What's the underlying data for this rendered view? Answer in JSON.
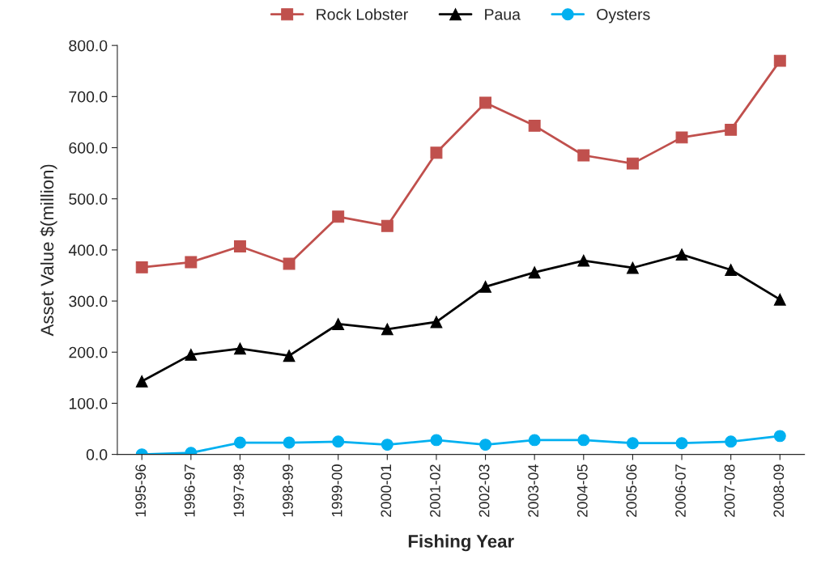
{
  "chart_data": {
    "type": "line",
    "xlabel": "Fishing Year",
    "ylabel": "Asset Value $(million)",
    "categories": [
      "1995-96",
      "1996-97",
      "1997-98",
      "1998-99",
      "1999-00",
      "2000-01",
      "2001-02",
      "2002-03",
      "2003-04",
      "2004-05",
      "2005-06",
      "2006-07",
      "2007-08",
      "2008-09"
    ],
    "series": [
      {
        "name": "Rock Lobster",
        "color": "#c0504d",
        "marker": "square",
        "values": [
          366,
          376,
          407,
          373,
          465,
          447,
          590,
          688,
          643,
          585,
          569,
          620,
          635,
          770
        ]
      },
      {
        "name": "Paua",
        "color": "#000000",
        "marker": "triangle",
        "values": [
          143,
          195,
          207,
          193,
          255,
          245,
          259,
          328,
          356,
          379,
          365,
          391,
          361,
          303
        ]
      },
      {
        "name": "Oysters",
        "color": "#00b0f0",
        "marker": "circle",
        "values": [
          0,
          3,
          23,
          23,
          25,
          19,
          28,
          19,
          28,
          28,
          22,
          22,
          25,
          36
        ]
      }
    ],
    "ylim": [
      0,
      800
    ],
    "yticks": [
      {
        "value": 0,
        "label": "0.0"
      },
      {
        "value": 100,
        "label": "100.0"
      },
      {
        "value": 200,
        "label": "200.0"
      },
      {
        "value": 300,
        "label": "300.0"
      },
      {
        "value": 400,
        "label": "400.0"
      },
      {
        "value": 500,
        "label": "500.0"
      },
      {
        "value": 600,
        "label": "600.0"
      },
      {
        "value": 700,
        "label": "700.0"
      },
      {
        "value": 800,
        "label": "800.0"
      }
    ],
    "grid": false,
    "legend": "top",
    "line_style": "solid"
  }
}
